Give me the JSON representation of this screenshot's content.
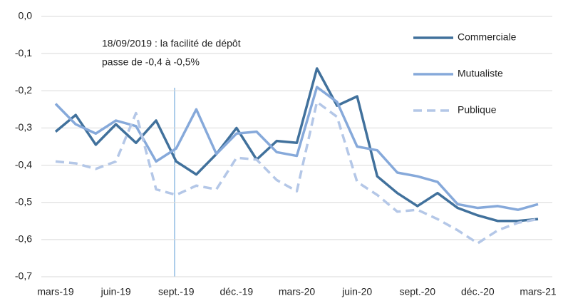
{
  "chart_data": {
    "type": "line",
    "annotation": [
      "18/09/2019 : la facilité de dépôt",
      "passe de -0,4 à -0,5%"
    ],
    "categories": [
      "mars-19",
      null,
      null,
      "juin-19",
      null,
      null,
      "sept.-19",
      null,
      null,
      "déc.-19",
      null,
      null,
      "mars-20",
      null,
      null,
      "juin-20",
      null,
      null,
      "sept.-20",
      null,
      null,
      "déc.-20",
      null,
      null,
      "mars-21"
    ],
    "series": [
      {
        "name": "Commerciale",
        "color": "#41719c",
        "style": "solid",
        "values": [
          -0.31,
          -0.265,
          -0.345,
          -0.29,
          -0.34,
          -0.28,
          -0.39,
          -0.425,
          -0.37,
          -0.3,
          -0.385,
          -0.335,
          -0.34,
          -0.14,
          -0.24,
          -0.215,
          -0.43,
          -0.475,
          -0.51,
          -0.475,
          -0.515,
          -0.535,
          -0.55,
          -0.55,
          -0.545
        ]
      },
      {
        "name": "Mutualiste",
        "color": "#86a9da",
        "style": "solid",
        "values": [
          -0.235,
          -0.29,
          -0.315,
          -0.28,
          -0.295,
          -0.39,
          -0.355,
          -0.25,
          -0.37,
          -0.315,
          -0.31,
          -0.365,
          -0.375,
          -0.19,
          -0.23,
          -0.35,
          -0.36,
          -0.42,
          -0.43,
          -0.445,
          -0.505,
          -0.515,
          -0.51,
          -0.52,
          -0.505
        ]
      },
      {
        "name": "Publique",
        "color": "#b4c7e7",
        "style": "dashed",
        "values": [
          -0.39,
          -0.395,
          -0.41,
          -0.39,
          -0.26,
          -0.465,
          -0.48,
          -0.455,
          -0.465,
          -0.38,
          -0.385,
          -0.44,
          -0.47,
          -0.23,
          -0.27,
          -0.445,
          -0.48,
          -0.525,
          -0.52,
          -0.545,
          -0.575,
          -0.61,
          -0.575,
          -0.555,
          -0.545
        ]
      }
    ],
    "ylim": [
      -0.7,
      0
    ],
    "yticks": [
      {
        "value": 0,
        "label": "0,0"
      },
      {
        "value": -0.1,
        "label": "-0,1"
      },
      {
        "value": -0.2,
        "label": "-0,2"
      },
      {
        "value": -0.3,
        "label": "-0,3"
      },
      {
        "value": -0.4,
        "label": "-0,4"
      },
      {
        "value": -0.5,
        "label": "-0,5"
      },
      {
        "value": -0.6,
        "label": "-0,6"
      },
      {
        "value": -0.7,
        "label": "-0,7"
      }
    ],
    "grid": true
  }
}
